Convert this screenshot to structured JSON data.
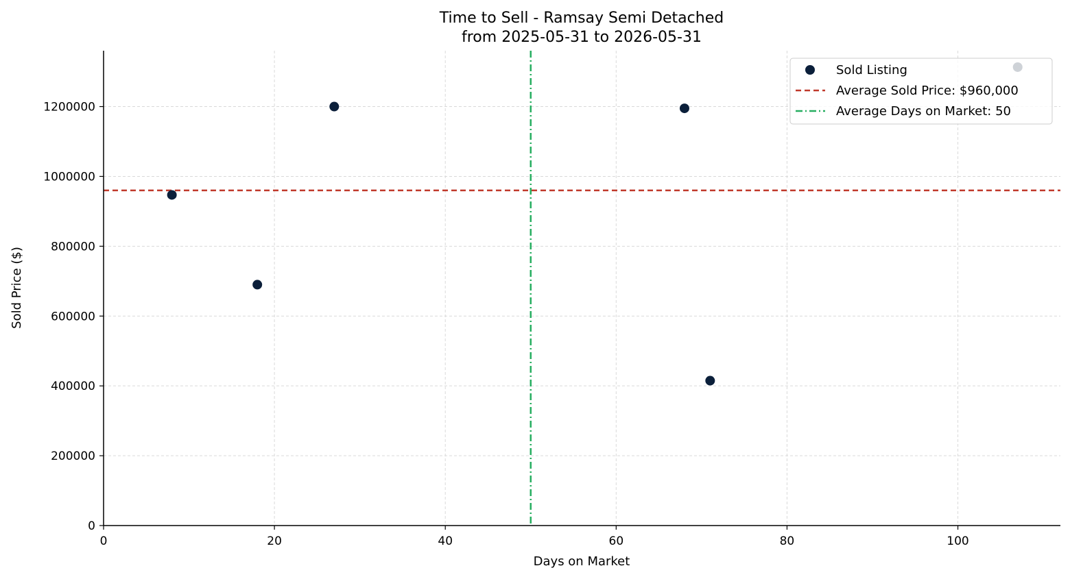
{
  "chart_data": {
    "type": "scatter",
    "title_line1": "Time to Sell - Ramsay Semi Detached",
    "title_line2": "from 2025-05-31 to 2026-05-31",
    "xlabel": "Days on Market",
    "ylabel": "Sold Price ($)",
    "xlim": [
      0,
      112
    ],
    "ylim": [
      0,
      1360000
    ],
    "xticks": [
      0,
      20,
      40,
      60,
      80,
      100
    ],
    "yticks": [
      0,
      200000,
      400000,
      600000,
      800000,
      1000000,
      1200000
    ],
    "grid": true,
    "legend_position": "top-right",
    "series": [
      {
        "name": "Sold Listing",
        "color": "#0b1f3a",
        "points": [
          {
            "x": 8,
            "y": 947000
          },
          {
            "x": 18,
            "y": 690000
          },
          {
            "x": 27,
            "y": 1200000
          },
          {
            "x": 68,
            "y": 1195000
          },
          {
            "x": 71,
            "y": 415000
          },
          {
            "x": 107,
            "y": 1313000
          }
        ]
      }
    ],
    "reference_lines": [
      {
        "name": "Average Sold Price: $960,000",
        "orientation": "horizontal",
        "value": 960000,
        "color": "#c0392b",
        "style": "dashed"
      },
      {
        "name": "Average Days on Market: 50",
        "orientation": "vertical",
        "value": 50,
        "color": "#27ae60",
        "style": "dashdot"
      }
    ]
  }
}
